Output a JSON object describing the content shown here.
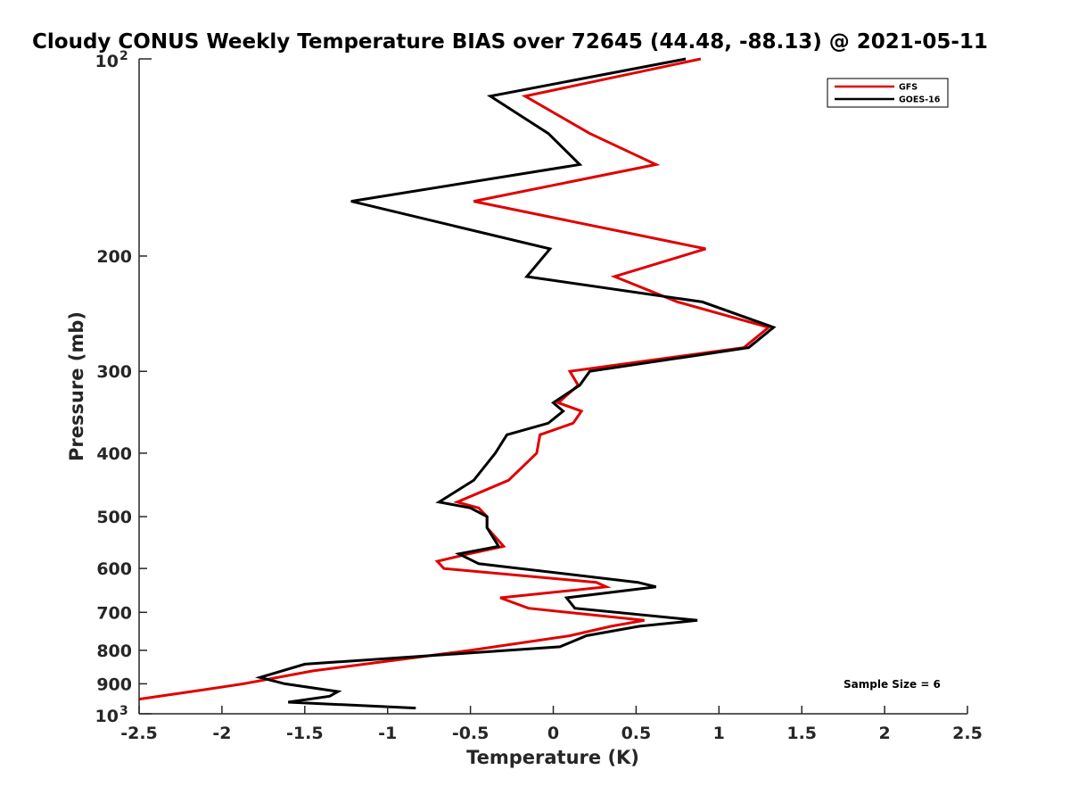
{
  "chart_data": {
    "type": "line",
    "title": "Cloudy CONUS Weekly Temperature BIAS over 72645 (44.48, -88.13) @ 2021-05-11",
    "xlabel": "Temperature (K)",
    "ylabel": "Pressure (mb)",
    "xlim": [
      -2.5,
      2.5
    ],
    "ylim": [
      100,
      1000
    ],
    "y_scale": "log",
    "y_reversed": true,
    "grid": false,
    "legend_position": "top-right",
    "x_ticks": [
      -2.5,
      -2,
      -1.5,
      -1,
      -0.5,
      0,
      0.5,
      1,
      1.5,
      2,
      2.5
    ],
    "x_tick_labels": [
      "-2.5",
      "-2",
      "-1.5",
      "-1",
      "-0.5",
      "0",
      "0.5",
      "1",
      "1.5",
      "2",
      "2.5"
    ],
    "y_ticks": [
      200,
      300,
      400,
      500,
      600,
      700,
      800,
      900
    ],
    "y_tick_labels": [
      "200",
      "300",
      "400",
      "500",
      "600",
      "700",
      "800",
      "900"
    ],
    "y_decade_labels": [
      {
        "value": 100,
        "base": "10",
        "exp": "2"
      },
      {
        "value": 1000,
        "base": "10",
        "exp": "3"
      }
    ],
    "annotation": "Sample Size = 6",
    "series": [
      {
        "name": "GFS",
        "color": "#e00000",
        "x": [
          0.89,
          -0.17,
          0.22,
          0.62,
          -0.48,
          0.92,
          0.37,
          0.75,
          1.3,
          1.15,
          0.1,
          0.15,
          0.03,
          0.17,
          0.12,
          -0.08,
          -0.1,
          -0.27,
          -0.58,
          -0.45,
          -0.4,
          -0.4,
          -0.3,
          -0.51,
          -0.7,
          -0.66,
          0.26,
          0.32,
          -0.32,
          -0.15,
          0.55,
          0.35,
          0.1,
          -0.5,
          -1.45,
          -1.87,
          -2.12,
          -2.5
        ],
        "y": [
          100,
          114,
          130,
          145,
          165,
          195,
          215,
          235,
          257,
          276,
          300,
          315,
          335,
          345,
          360,
          375,
          400,
          440,
          475,
          485,
          500,
          520,
          555,
          570,
          585,
          600,
          630,
          640,
          665,
          690,
          720,
          735,
          760,
          800,
          860,
          900,
          920,
          950
        ]
      },
      {
        "name": "GOES-16",
        "color": "#000000",
        "x": [
          0.8,
          -0.38,
          -0.03,
          0.16,
          -1.22,
          -0.02,
          -0.16,
          0.9,
          1.33,
          1.18,
          0.22,
          0.16,
          0.0,
          0.06,
          -0.03,
          -0.28,
          -0.35,
          -0.48,
          -0.69,
          -0.5,
          -0.4,
          -0.4,
          -0.33,
          -0.57,
          -0.45,
          0.51,
          0.62,
          0.08,
          0.13,
          0.87,
          0.52,
          0.2,
          0.04,
          -1.5,
          -1.77,
          -1.62,
          -1.3,
          -1.35,
          -1.6,
          -0.83
        ],
        "y": [
          100,
          114,
          130,
          145,
          165,
          195,
          215,
          235,
          257,
          276,
          300,
          315,
          335,
          345,
          360,
          375,
          400,
          440,
          475,
          485,
          500,
          520,
          555,
          570,
          590,
          630,
          640,
          665,
          690,
          720,
          735,
          760,
          790,
          840,
          880,
          900,
          925,
          940,
          960,
          980
        ]
      }
    ]
  }
}
